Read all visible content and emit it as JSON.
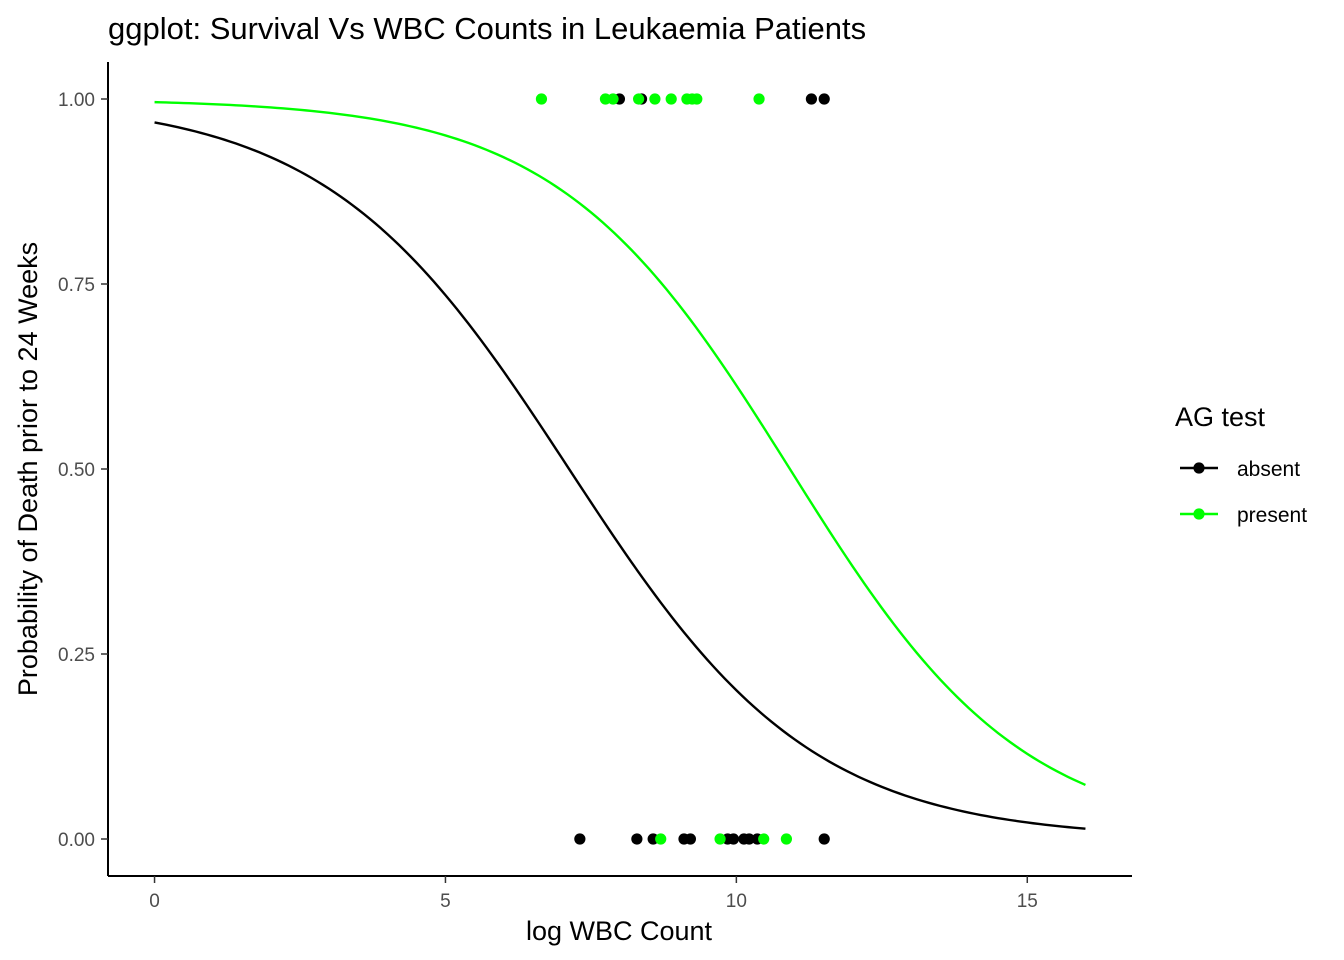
{
  "chart_data": {
    "type": "scatter",
    "title": "ggplot: Survival Vs WBC Counts in Leukaemia Patients",
    "xlabel": "log WBC Count",
    "ylabel": "Probability of Death prior to 24 Weeks",
    "xlim": [
      -0.8,
      16.8
    ],
    "ylim": [
      -0.05,
      1.05
    ],
    "x_ticks": [
      0,
      5,
      10,
      15
    ],
    "x_tick_labels": [
      "0",
      "5",
      "10",
      "15"
    ],
    "y_ticks": [
      0,
      0.25,
      0.5,
      0.75,
      1.0
    ],
    "y_tick_labels": [
      "0.00",
      "0.25",
      "0.50",
      "0.75",
      "1.00"
    ],
    "grid": false,
    "legend": {
      "title": "AG test",
      "position": "right",
      "entries": [
        "absent",
        "present"
      ]
    },
    "series": [
      {
        "name": "absent",
        "color": "#000000",
        "points": [
          {
            "x": 7.99,
            "y": 1
          },
          {
            "x": 8.37,
            "y": 1
          },
          {
            "x": 11.29,
            "y": 1
          },
          {
            "x": 11.51,
            "y": 1
          },
          {
            "x": 7.31,
            "y": 0
          },
          {
            "x": 8.29,
            "y": 0
          },
          {
            "x": 8.57,
            "y": 0
          },
          {
            "x": 9.1,
            "y": 0
          },
          {
            "x": 9.21,
            "y": 0
          },
          {
            "x": 9.85,
            "y": 0
          },
          {
            "x": 9.95,
            "y": 0
          },
          {
            "x": 10.13,
            "y": 0
          },
          {
            "x": 10.22,
            "y": 0
          },
          {
            "x": 10.36,
            "y": 0
          },
          {
            "x": 11.51,
            "y": 0
          }
        ],
        "curve": {
          "intercept": 3.42,
          "slope": -0.48,
          "x_from": 0,
          "x_to": 16
        }
      },
      {
        "name": "present",
        "color": "#00ff00",
        "points": [
          {
            "x": 6.65,
            "y": 1
          },
          {
            "x": 7.75,
            "y": 1
          },
          {
            "x": 7.88,
            "y": 1
          },
          {
            "x": 8.32,
            "y": 1
          },
          {
            "x": 8.6,
            "y": 1
          },
          {
            "x": 8.88,
            "y": 1
          },
          {
            "x": 9.15,
            "y": 1
          },
          {
            "x": 9.24,
            "y": 1
          },
          {
            "x": 9.32,
            "y": 1
          },
          {
            "x": 10.39,
            "y": 1
          },
          {
            "x": 8.7,
            "y": 0
          },
          {
            "x": 9.72,
            "y": 0
          },
          {
            "x": 10.47,
            "y": 0
          },
          {
            "x": 10.86,
            "y": 0
          }
        ],
        "curve": {
          "intercept": 5.46,
          "slope": -0.5,
          "x_from": 0,
          "x_to": 16
        }
      }
    ]
  }
}
